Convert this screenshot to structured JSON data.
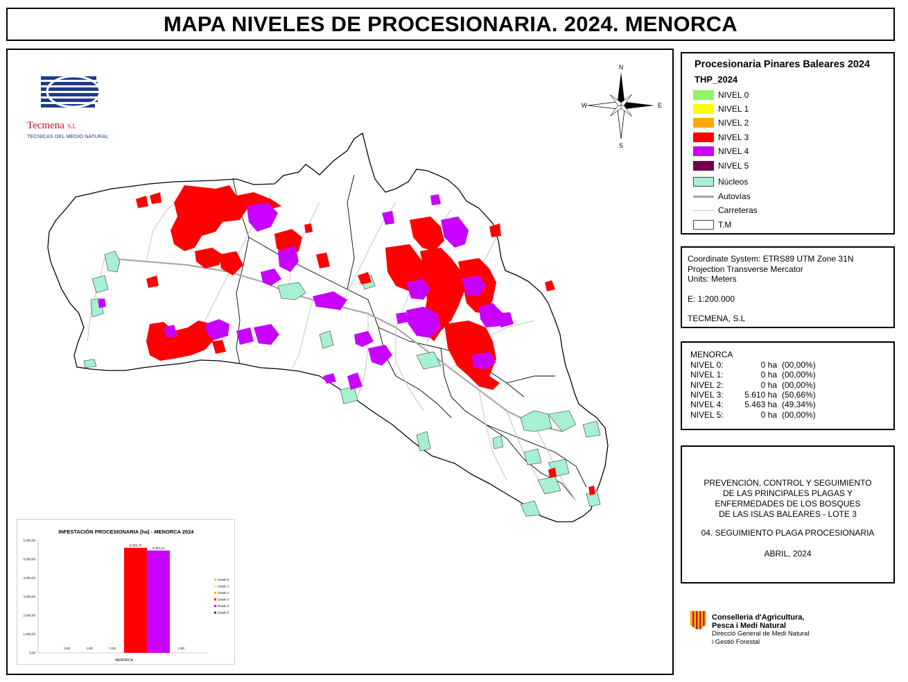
{
  "header": {
    "title": "MAPA NIVELES DE PROCESIONARIA. 2024. MENORCA"
  },
  "logo": {
    "name": "Tecmena",
    "suffix": "S.L",
    "subtitle": "TECNICAS DEL MEDIO NATURAL"
  },
  "compass": {
    "n": "N",
    "s": "S",
    "e": "E",
    "w": "W"
  },
  "legend": {
    "title": "Procesionaria Pinares Baleares 2024",
    "field": "THP_2024",
    "items": [
      {
        "label": "NIVEL 0",
        "color": "#8ff56a"
      },
      {
        "label": "NIVEL 1",
        "color": "#ffff00"
      },
      {
        "label": "NIVEL 2",
        "color": "#ffaa00"
      },
      {
        "label": "NIVEL 3",
        "color": "#ff0000"
      },
      {
        "label": "NIVEL 4",
        "color": "#c800ff"
      },
      {
        "label": "NIVEL 5",
        "color": "#730048"
      },
      {
        "label": "Núcleos",
        "color": "#a8f0d2"
      },
      {
        "label": "Autovías",
        "color": "#a0a0a0"
      },
      {
        "label": "Carreteras",
        "color": "#c8c8c8"
      },
      {
        "label": "T.M",
        "color": "#ffffff"
      }
    ]
  },
  "coords": {
    "system": "Coordinate System: ETRS89 UTM Zone 31N",
    "projection": "Projection Transverse Mercator",
    "units": "Units: Meters",
    "scale": "E: 1:200.000",
    "author": "TECMENA, S.L"
  },
  "stats": {
    "title": "MENORCA",
    "rows": [
      {
        "label": "NIVEL 0:",
        "ha": "0 ha",
        "pct": "(00,00%)"
      },
      {
        "label": "NIVEL 1:",
        "ha": "0 ha",
        "pct": "(00,00%)"
      },
      {
        "label": "NIVEL 2:",
        "ha": "0 ha",
        "pct": "(00,00%)"
      },
      {
        "label": "NIVEL 3:",
        "ha": "5.610 ha",
        "pct": "(50,66%)"
      },
      {
        "label": "NIVEL 4:",
        "ha": "5.463 ha",
        "pct": "(49,34%)"
      },
      {
        "label": "NIVEL 5:",
        "ha": "0 ha",
        "pct": "(00,00%)"
      }
    ]
  },
  "project": {
    "lines": [
      "PREVENCIÓN, CONTROL Y SEGUIMIENTO",
      "DE LAS PRINCIPALES PLAGAS Y",
      "ENFERMEDADES DE LOS BOSQUES",
      "DE LAS ISLAS BALEARES - LOTE 3"
    ],
    "phase": "04. SEGUIMIENTO PLAGA PROCESIONARIA",
    "date": "ABRIL, 2024"
  },
  "conselleria": {
    "line1": "Conselleria d'Agricultura,",
    "line2": "Pesca i Medi Natural",
    "line3": "Direcció General de Medi Natural",
    "line4": "i Gestió Forestal"
  },
  "chart_data": {
    "type": "bar",
    "title": "INFESTACIÓN PROCESIONARIA (ha) - MENORCA 2024",
    "categories": [
      "MENORCA"
    ],
    "series": [
      {
        "name": "Grado 0",
        "values": [
          0
        ],
        "color": "#8ff56a"
      },
      {
        "name": "Grado 1",
        "values": [
          0
        ],
        "color": "#ffff00"
      },
      {
        "name": "Grado 2",
        "values": [
          0
        ],
        "color": "#ffaa00"
      },
      {
        "name": "Grado 3",
        "values": [
          5609.78
        ],
        "color": "#ff0000"
      },
      {
        "name": "Grado 4",
        "values": [
          5463.24
        ],
        "color": "#c800ff"
      },
      {
        "name": "Grado 5",
        "values": [
          0
        ],
        "color": "#730048"
      }
    ],
    "data_labels": [
      "0,00",
      "0,00",
      "0,00",
      "5.609,78",
      "5.463,24",
      "0,00"
    ],
    "yticks": [
      "0,00",
      "1.000,00",
      "2.000,00",
      "3.000,00",
      "4.000,00",
      "5.000,00",
      "6.000,00"
    ],
    "ylim": [
      0,
      6000
    ],
    "legend": "right",
    "grid": false
  }
}
